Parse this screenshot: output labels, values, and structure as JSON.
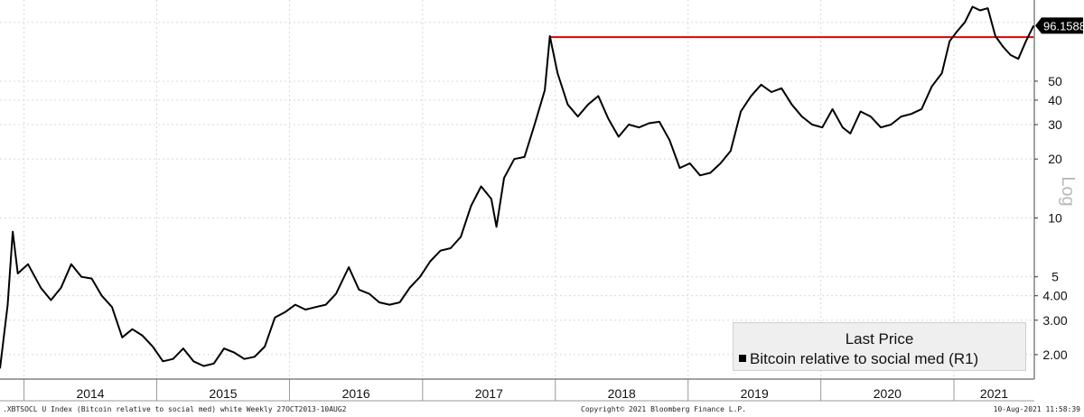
{
  "chart_data": {
    "type": "line",
    "title": "",
    "yscale": "log",
    "ylabel": "Log",
    "ylim": [
      1.5,
      130
    ],
    "y_ticks": [
      2,
      3,
      4,
      5,
      10,
      20,
      30,
      40,
      50
    ],
    "y_tick_labels": [
      "2.00",
      "3.00",
      "4.00",
      "5",
      "10",
      "20",
      "30",
      "40",
      "50"
    ],
    "x_year_labels": [
      "2014",
      "2015",
      "2016",
      "2017",
      "2018",
      "2019",
      "2020",
      "2021"
    ],
    "grid": true,
    "last_value_label": "96.1588",
    "series": [
      {
        "name": "Bitcoin relative to social med",
        "color": "#000000",
        "points": [
          [
            "2013-10-27",
            1.7
          ],
          [
            "2013-11-17",
            3.6
          ],
          [
            "2013-12-01",
            8.5
          ],
          [
            "2013-12-15",
            5.2
          ],
          [
            "2014-01-12",
            5.8
          ],
          [
            "2014-02-16",
            4.4
          ],
          [
            "2014-03-16",
            3.8
          ],
          [
            "2014-04-13",
            4.4
          ],
          [
            "2014-05-11",
            5.8
          ],
          [
            "2014-06-08",
            5.0
          ],
          [
            "2014-07-06",
            4.9
          ],
          [
            "2014-08-03",
            4.0
          ],
          [
            "2014-08-31",
            3.5
          ],
          [
            "2014-09-28",
            2.45
          ],
          [
            "2014-10-26",
            2.7
          ],
          [
            "2014-11-23",
            2.5
          ],
          [
            "2014-12-21",
            2.2
          ],
          [
            "2015-01-18",
            1.85
          ],
          [
            "2015-02-15",
            1.9
          ],
          [
            "2015-03-15",
            2.15
          ],
          [
            "2015-04-12",
            1.85
          ],
          [
            "2015-05-10",
            1.75
          ],
          [
            "2015-06-07",
            1.8
          ],
          [
            "2015-07-05",
            2.15
          ],
          [
            "2015-08-02",
            2.05
          ],
          [
            "2015-08-30",
            1.9
          ],
          [
            "2015-09-27",
            1.95
          ],
          [
            "2015-10-25",
            2.2
          ],
          [
            "2015-11-22",
            3.1
          ],
          [
            "2015-12-20",
            3.3
          ],
          [
            "2016-01-17",
            3.6
          ],
          [
            "2016-02-14",
            3.4
          ],
          [
            "2016-03-13",
            3.5
          ],
          [
            "2016-04-10",
            3.6
          ],
          [
            "2016-05-08",
            4.1
          ],
          [
            "2016-06-12",
            5.6
          ],
          [
            "2016-07-10",
            4.3
          ],
          [
            "2016-08-07",
            4.1
          ],
          [
            "2016-09-04",
            3.7
          ],
          [
            "2016-10-02",
            3.6
          ],
          [
            "2016-10-30",
            3.7
          ],
          [
            "2016-11-27",
            4.4
          ],
          [
            "2016-12-25",
            5.0
          ],
          [
            "2017-01-22",
            6.0
          ],
          [
            "2017-02-19",
            6.8
          ],
          [
            "2017-03-19",
            7.0
          ],
          [
            "2017-04-16",
            8.0
          ],
          [
            "2017-05-14",
            11.5
          ],
          [
            "2017-06-11",
            14.5
          ],
          [
            "2017-07-09",
            12.5
          ],
          [
            "2017-07-23",
            9.0
          ],
          [
            "2017-08-13",
            16.0
          ],
          [
            "2017-09-10",
            20.0
          ],
          [
            "2017-10-08",
            20.5
          ],
          [
            "2017-11-05",
            30.0
          ],
          [
            "2017-12-03",
            45.0
          ],
          [
            "2017-12-17",
            85.0
          ],
          [
            "2018-01-07",
            55.0
          ],
          [
            "2018-02-04",
            38.0
          ],
          [
            "2018-03-04",
            33.0
          ],
          [
            "2018-04-01",
            38.0
          ],
          [
            "2018-04-29",
            42.0
          ],
          [
            "2018-05-27",
            32.0
          ],
          [
            "2018-06-24",
            26.0
          ],
          [
            "2018-07-22",
            30.0
          ],
          [
            "2018-08-19",
            29.0
          ],
          [
            "2018-09-16",
            30.5
          ],
          [
            "2018-10-14",
            31.0
          ],
          [
            "2018-11-11",
            25.0
          ],
          [
            "2018-12-09",
            18.0
          ],
          [
            "2019-01-06",
            19.0
          ],
          [
            "2019-02-03",
            16.5
          ],
          [
            "2019-03-03",
            17.0
          ],
          [
            "2019-03-31",
            19.0
          ],
          [
            "2019-04-28",
            22.0
          ],
          [
            "2019-05-26",
            35.0
          ],
          [
            "2019-06-23",
            42.0
          ],
          [
            "2019-07-21",
            48.0
          ],
          [
            "2019-08-18",
            44.0
          ],
          [
            "2019-09-15",
            46.0
          ],
          [
            "2019-10-13",
            38.0
          ],
          [
            "2019-11-10",
            33.0
          ],
          [
            "2019-12-08",
            30.0
          ],
          [
            "2020-01-05",
            29.0
          ],
          [
            "2020-02-02",
            36.0
          ],
          [
            "2020-03-01",
            29.0
          ],
          [
            "2020-03-22",
            27.0
          ],
          [
            "2020-04-19",
            35.0
          ],
          [
            "2020-05-17",
            33.0
          ],
          [
            "2020-06-14",
            29.0
          ],
          [
            "2020-07-12",
            30.0
          ],
          [
            "2020-08-09",
            33.0
          ],
          [
            "2020-09-06",
            34.0
          ],
          [
            "2020-10-04",
            36.0
          ],
          [
            "2020-11-01",
            47.0
          ],
          [
            "2020-11-29",
            55.0
          ],
          [
            "2020-12-20",
            80.0
          ],
          [
            "2021-01-10",
            90.0
          ],
          [
            "2021-01-31",
            100.0
          ],
          [
            "2021-02-21",
            120.0
          ],
          [
            "2021-03-14",
            115.0
          ],
          [
            "2021-04-04",
            118.0
          ],
          [
            "2021-04-25",
            85.0
          ],
          [
            "2021-05-16",
            75.0
          ],
          [
            "2021-06-06",
            68.0
          ],
          [
            "2021-06-27",
            65.0
          ],
          [
            "2021-07-18",
            80.0
          ],
          [
            "2021-08-08",
            96.16
          ]
        ]
      }
    ],
    "reference_line": {
      "color": "#e00000",
      "start": "2017-12-17",
      "end": "2021-08-08",
      "value": 84.0
    }
  },
  "legend": {
    "title": "Last Price",
    "entry": "Bitcoin relative to social med  (R1)"
  },
  "footer": {
    "left": ".XBTSOCL U Index (Bitcoin relative to social med) white  Weekly 27OCT2013-10AUG2",
    "center": "Copyright© 2021 Bloomberg Finance L.P.",
    "right": "10-Aug-2021 11:58:39"
  }
}
